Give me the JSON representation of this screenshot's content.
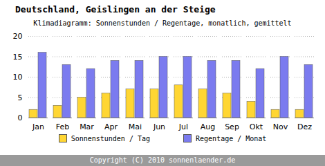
{
  "chart_data": {
    "type": "bar",
    "title": "Deutschland, Geislingen an der Steige",
    "subtitle": "Klimadiagramm: Sonnenstunden / Regentage, monatlich, gemittelt",
    "categories": [
      "Jan",
      "Feb",
      "Mar",
      "Apr",
      "Mai",
      "Jun",
      "Jul",
      "Aug",
      "Sep",
      "Okt",
      "Nov",
      "Dez"
    ],
    "series": [
      {
        "name": "Sonnenstunden / Tag",
        "color": "#ffd633",
        "values": [
          2,
          3,
          5,
          6,
          7,
          7,
          8,
          7,
          6,
          4,
          2,
          2
        ]
      },
      {
        "name": "Regentage / Monat",
        "color": "#7b7bef",
        "values": [
          16,
          13,
          12,
          14,
          14,
          15,
          15,
          14,
          14,
          12,
          15,
          13
        ]
      }
    ],
    "ylim": [
      0,
      20
    ],
    "yticks": [
      0,
      5,
      10,
      15,
      20
    ],
    "grid": true,
    "legend": "bottom",
    "source": "Copyright (C) 2010 sonnenlaender.de"
  }
}
